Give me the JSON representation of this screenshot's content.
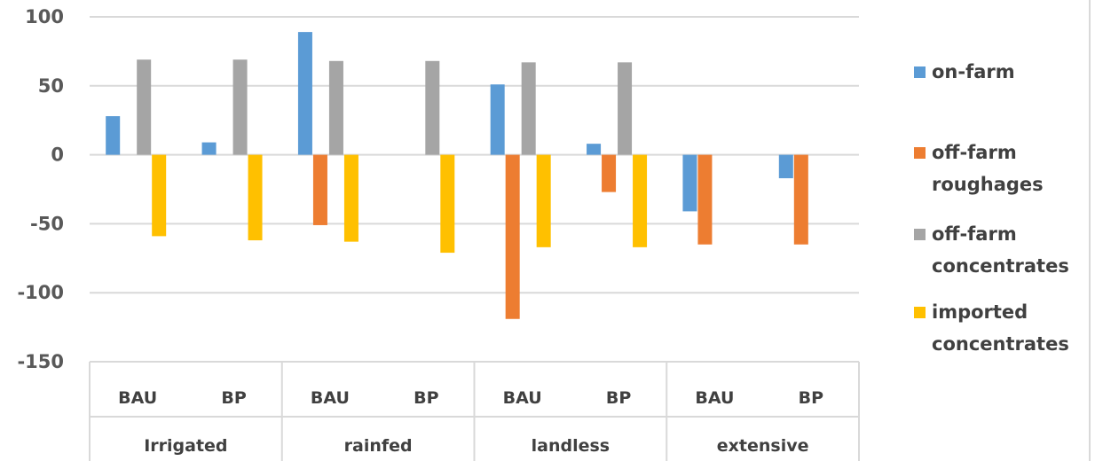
{
  "chart_data": {
    "type": "bar",
    "title": "",
    "xlabel": "",
    "ylabel": "",
    "ylim": [
      -150,
      100
    ],
    "yticks": [
      100,
      50,
      0,
      -50,
      -100,
      -150
    ],
    "grid": true,
    "legend_position": "right",
    "groups": [
      "Irrigated",
      "rainfed",
      "landless",
      "extensive"
    ],
    "subcategories": [
      "BAU",
      "BP"
    ],
    "categories": [
      "Irrigated BAU",
      "Irrigated BP",
      "rainfed BAU",
      "rainfed BP",
      "landless BAU",
      "landless BP",
      "extensive BAU",
      "extensive BP"
    ],
    "series": [
      {
        "name": "on-farm",
        "legend_lines": [
          "on-farm"
        ],
        "color": "#5B9BD5",
        "values": [
          28,
          9,
          89,
          null,
          51,
          8,
          -41,
          -17
        ]
      },
      {
        "name": "off-farm roughages",
        "legend_lines": [
          "off-farm",
          "roughages"
        ],
        "color": "#ED7D31",
        "values": [
          null,
          null,
          -51,
          null,
          -119,
          -27,
          -65,
          -65
        ]
      },
      {
        "name": "off-farm concentrates",
        "legend_lines": [
          "off-farm",
          "concentrates"
        ],
        "color": "#A5A5A5",
        "values": [
          69,
          69,
          68,
          68,
          67,
          67,
          null,
          null
        ]
      },
      {
        "name": "imported concentrates",
        "legend_lines": [
          "imported",
          "concentrates"
        ],
        "color": "#FFC000",
        "values": [
          -59,
          -62,
          -63,
          -71,
          -67,
          -67,
          null,
          null
        ]
      }
    ]
  }
}
